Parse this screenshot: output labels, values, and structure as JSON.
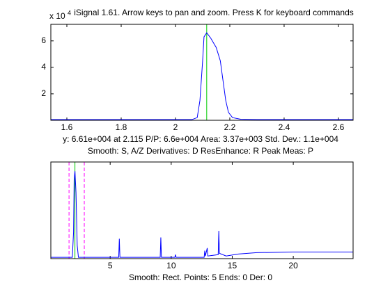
{
  "chart_data": [
    {
      "type": "line",
      "title": "iSignal 1.61. Arrow keys to pan and zoom. Press K for keyboard commands",
      "y_multiplier": {
        "base": "x 10",
        "exponent": "4"
      },
      "xlim": [
        1.541,
        2.654
      ],
      "xticks": [
        1.6,
        1.8,
        2,
        2.2,
        2.4,
        2.6
      ],
      "ylim": [
        0,
        7.25
      ],
      "yticks": [
        2,
        4,
        6
      ],
      "series": [
        {
          "color": "#0000ff",
          "x": [
            1.541,
            1.8,
            2.0,
            2.06,
            2.08,
            2.09,
            2.1,
            2.105,
            2.115,
            2.13,
            2.15,
            2.165,
            2.175,
            2.185,
            2.195,
            2.21,
            2.24,
            2.3,
            2.654
          ],
          "values": [
            0.05,
            0.05,
            0.05,
            0.05,
            0.2,
            1.5,
            4.5,
            6.3,
            6.61,
            6.2,
            5.5,
            4.5,
            3.0,
            1.5,
            0.6,
            0.2,
            0.08,
            0.05,
            0.05
          ]
        }
      ],
      "cursor_x": 2.115,
      "cursor_color": "#00cc00",
      "annotations": [
        "y: 6.61e+004 at 2.115   P/P: 6.6e+004   Area: 3.37e+003   Std. Dev.: 1.1e+004",
        "Smooth: S, A/Z    Derivatives: D    ResEnhance: R    Peak Meas: P"
      ]
    },
    {
      "type": "line",
      "xlim": [
        0.14,
        24.9
      ],
      "xticks": [
        5,
        10,
        15,
        20
      ],
      "ylim": [
        0,
        7.3
      ],
      "series": [
        {
          "color": "#0000ff",
          "x": [
            0.14,
            1.9,
            2.0,
            2.05,
            2.115,
            2.2,
            2.3,
            2.4,
            5.7,
            5.75,
            5.8,
            9.1,
            9.15,
            9.2,
            10.3,
            10.35,
            10.4,
            12.7,
            12.75,
            12.8,
            12.95,
            13.0,
            13.85,
            13.9,
            13.95,
            14.5,
            15.5,
            17,
            20,
            24.9
          ],
          "values": [
            0.1,
            0.1,
            2,
            6,
            6.61,
            5,
            1,
            0.1,
            0.1,
            1.5,
            0.1,
            0.1,
            1.6,
            0.1,
            0.1,
            0.3,
            0.1,
            0.1,
            0.6,
            0.2,
            0.8,
            0.2,
            0.3,
            2.1,
            0.4,
            0.2,
            0.35,
            0.45,
            0.5,
            0.5
          ]
        }
      ],
      "cursor_x": 2.115,
      "cursor_color": "#00cc00",
      "window_x": [
        1.63,
        2.88
      ],
      "window_color": "#ff00ff",
      "annotations": [
        "Smooth: Rect.    Points: 5    Ends: 0    Der: 0"
      ]
    }
  ]
}
